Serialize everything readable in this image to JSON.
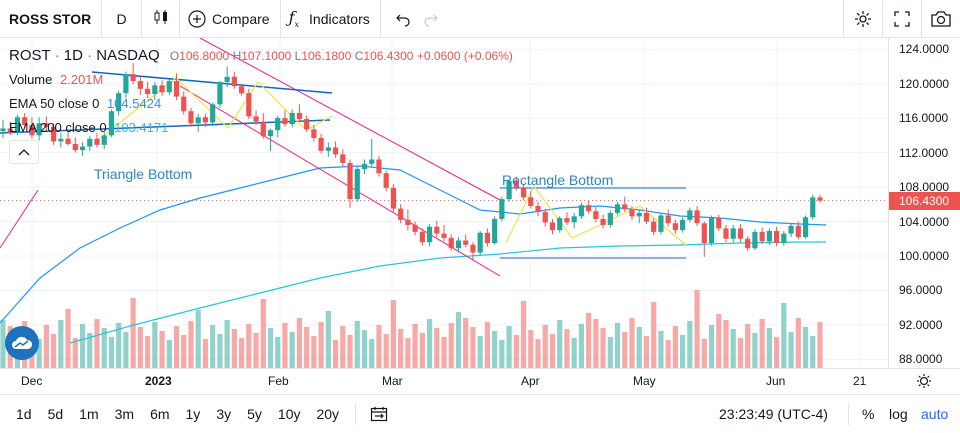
{
  "toolbar": {
    "symbol": "ROSS STOR",
    "interval": "D",
    "compare_label": "Compare",
    "indicators_label": "Indicators"
  },
  "legend": {
    "symbol": "ROST",
    "interval": "1D",
    "exchange": "NASDAQ",
    "o_label": "O",
    "open": "106.8000",
    "h_label": "H",
    "high": "107.1000",
    "l_label": "L",
    "low": "106.1800",
    "c_label": "C",
    "close": "106.4300",
    "change": "+0.0600 (+0.06%)",
    "volume_label": "Volume",
    "volume_value": "2.201M",
    "ema50_label": "EMA 50 close 0",
    "ema50_value": "104.5424",
    "ema200_label": "EMA 200 close 0",
    "ema200_value": "103.4171"
  },
  "annotations": {
    "triangle": "Triangle Bottom",
    "rectangle": "Rectangle Bottom"
  },
  "price_axis": {
    "labels": [
      "124.0000",
      "120.0000",
      "116.0000",
      "112.0000",
      "108.0000",
      "104.0000",
      "100.0000",
      "96.0000",
      "92.0000",
      "88.0000"
    ],
    "current_price": "106.4300"
  },
  "time_axis": {
    "labels": [
      "Dec",
      "2023",
      "Feb",
      "Mar",
      "Apr",
      "May",
      "Jun",
      "21"
    ]
  },
  "bottom": {
    "ranges": [
      "1d",
      "5d",
      "1m",
      "3m",
      "6m",
      "1y",
      "3y",
      "5y",
      "10y",
      "20y"
    ],
    "time": "23:23:49 (UTC-4)",
    "percent": "%",
    "log": "log",
    "auto": "auto"
  },
  "colors": {
    "up": "#26a69a",
    "down": "#ef5350",
    "ema50": "#2196f3",
    "ema200": "#26c6da",
    "pattern": "#e91e8c",
    "trendline": "#1565c0",
    "zigzag": "#f0e442",
    "accent": "#2962ff"
  },
  "chart_data": {
    "type": "candlestick",
    "y_range": [
      87,
      125.3
    ],
    "candles": [
      [
        114.5,
        115.8,
        113.7,
        114.8
      ],
      [
        114.8,
        115.6,
        114.0,
        114.3
      ],
      [
        114.3,
        116.4,
        114.0,
        116.1
      ],
      [
        116.1,
        116.6,
        114.9,
        115.2
      ],
      [
        115.2,
        116.1,
        113.6,
        114.0
      ],
      [
        114.0,
        116.1,
        113.4,
        115.4
      ],
      [
        115.4,
        116.2,
        114.5,
        115.0
      ],
      [
        115.0,
        115.4,
        112.9,
        113.3
      ],
      [
        113.3,
        114.3,
        112.6,
        113.6
      ],
      [
        113.6,
        114.6,
        112.8,
        113.0
      ],
      [
        113.0,
        113.8,
        112.0,
        112.3
      ],
      [
        112.3,
        113.2,
        111.6,
        112.7
      ],
      [
        112.7,
        113.9,
        112.2,
        113.6
      ],
      [
        113.6,
        114.3,
        112.6,
        112.9
      ],
      [
        112.9,
        114.4,
        112.4,
        114.0
      ],
      [
        114.0,
        117.0,
        113.8,
        116.8
      ],
      [
        116.8,
        119.2,
        116.3,
        118.9
      ],
      [
        118.9,
        121.4,
        118.3,
        121.1
      ],
      [
        121.1,
        122.4,
        119.9,
        120.3
      ],
      [
        120.3,
        120.9,
        118.7,
        119.4
      ],
      [
        119.4,
        120.2,
        118.3,
        118.8
      ],
      [
        118.8,
        120.2,
        118.1,
        119.8
      ],
      [
        119.8,
        120.4,
        118.6,
        119.0
      ],
      [
        119.0,
        120.5,
        118.7,
        120.3
      ],
      [
        120.3,
        121.2,
        118.1,
        118.5
      ],
      [
        118.5,
        119.1,
        116.4,
        116.8
      ],
      [
        116.8,
        117.2,
        115.0,
        115.4
      ],
      [
        115.4,
        116.5,
        114.4,
        116.1
      ],
      [
        116.1,
        116.5,
        115.0,
        115.5
      ],
      [
        115.5,
        117.8,
        115.1,
        117.6
      ],
      [
        117.6,
        120.3,
        117.2,
        120.2
      ],
      [
        120.2,
        122.0,
        119.6,
        120.8
      ],
      [
        120.8,
        121.4,
        119.4,
        119.7
      ],
      [
        119.7,
        120.0,
        118.6,
        118.9
      ],
      [
        118.9,
        119.4,
        115.9,
        116.2
      ],
      [
        116.2,
        116.9,
        115.2,
        115.6
      ],
      [
        115.6,
        116.6,
        113.6,
        113.9
      ],
      [
        113.9,
        114.8,
        112.2,
        114.6
      ],
      [
        114.6,
        116.3,
        113.8,
        116.0
      ],
      [
        116.0,
        116.9,
        115.0,
        115.3
      ],
      [
        115.3,
        117.0,
        114.9,
        116.6
      ],
      [
        116.6,
        117.6,
        115.6,
        115.9
      ],
      [
        115.9,
        116.3,
        114.4,
        114.7
      ],
      [
        114.7,
        115.2,
        113.3,
        113.7
      ],
      [
        113.7,
        114.2,
        111.9,
        112.2
      ],
      [
        112.2,
        113.2,
        111.5,
        112.6
      ],
      [
        112.6,
        113.3,
        111.4,
        111.8
      ],
      [
        111.8,
        112.4,
        110.4,
        110.8
      ],
      [
        110.8,
        111.2,
        105.6,
        106.6
      ],
      [
        106.6,
        110.4,
        106.3,
        110.1
      ],
      [
        110.1,
        111.2,
        109.5,
        110.7
      ],
      [
        110.7,
        113.6,
        110.3,
        111.2
      ],
      [
        111.2,
        111.6,
        109.2,
        109.6
      ],
      [
        109.6,
        109.9,
        107.5,
        107.9
      ],
      [
        107.9,
        108.3,
        105.1,
        105.5
      ],
      [
        105.5,
        106.0,
        103.8,
        104.2
      ],
      [
        104.2,
        105.4,
        103.0,
        103.6
      ],
      [
        103.6,
        104.0,
        102.4,
        102.8
      ],
      [
        102.8,
        103.2,
        101.2,
        101.6
      ],
      [
        101.6,
        103.7,
        101.1,
        103.4
      ],
      [
        103.4,
        104.1,
        102.2,
        102.6
      ],
      [
        102.6,
        103.6,
        101.7,
        102.1
      ],
      [
        102.1,
        102.5,
        100.6,
        100.9
      ],
      [
        100.9,
        102.2,
        100.4,
        101.8
      ],
      [
        101.8,
        102.5,
        101.0,
        101.3
      ],
      [
        101.3,
        101.6,
        99.6,
        100.4
      ],
      [
        100.4,
        102.9,
        100.1,
        102.7
      ],
      [
        102.7,
        103.2,
        101.1,
        101.5
      ],
      [
        101.5,
        104.6,
        101.3,
        104.3
      ],
      [
        104.3,
        106.9,
        104.0,
        106.6
      ],
      [
        106.6,
        108.9,
        106.3,
        108.7
      ],
      [
        108.7,
        109.2,
        107.6,
        107.9
      ],
      [
        107.9,
        108.3,
        106.5,
        106.8
      ],
      [
        106.8,
        107.5,
        105.5,
        105.8
      ],
      [
        105.8,
        106.3,
        104.6,
        105.1
      ],
      [
        105.1,
        105.5,
        103.4,
        103.9
      ],
      [
        103.9,
        104.3,
        102.5,
        103.0
      ],
      [
        103.0,
        104.6,
        102.7,
        104.4
      ],
      [
        104.4,
        105.1,
        103.6,
        103.9
      ],
      [
        103.9,
        105.0,
        103.2,
        104.6
      ],
      [
        104.6,
        106.2,
        104.3,
        105.9
      ],
      [
        105.9,
        106.4,
        104.9,
        105.2
      ],
      [
        105.2,
        105.7,
        103.9,
        104.3
      ],
      [
        104.3,
        104.8,
        103.2,
        103.6
      ],
      [
        103.6,
        105.3,
        103.3,
        105.0
      ],
      [
        105.0,
        106.3,
        104.7,
        106.0
      ],
      [
        106.0,
        106.9,
        105.1,
        105.4
      ],
      [
        105.4,
        105.8,
        104.2,
        104.6
      ],
      [
        104.6,
        105.3,
        103.8,
        105.0
      ],
      [
        105.0,
        105.6,
        103.7,
        104.0
      ],
      [
        104.0,
        104.4,
        102.4,
        102.8
      ],
      [
        102.8,
        105.0,
        102.5,
        104.7
      ],
      [
        104.7,
        105.4,
        103.4,
        103.8
      ],
      [
        103.8,
        104.2,
        102.6,
        103.0
      ],
      [
        103.0,
        104.5,
        102.7,
        104.2
      ],
      [
        104.2,
        105.6,
        103.9,
        105.3
      ],
      [
        105.3,
        105.8,
        103.5,
        103.8
      ],
      [
        103.8,
        104.0,
        99.9,
        101.5
      ],
      [
        101.5,
        104.7,
        101.2,
        104.4
      ],
      [
        104.4,
        104.8,
        102.9,
        103.2
      ],
      [
        103.2,
        103.6,
        101.6,
        102.0
      ],
      [
        102.0,
        103.6,
        101.6,
        103.2
      ],
      [
        103.2,
        103.7,
        101.6,
        102.0
      ],
      [
        102.0,
        102.3,
        100.6,
        100.9
      ],
      [
        100.9,
        103.1,
        100.7,
        102.8
      ],
      [
        102.8,
        103.3,
        101.4,
        101.7
      ],
      [
        101.7,
        103.2,
        101.3,
        102.9
      ],
      [
        102.9,
        103.4,
        101.1,
        101.5
      ],
      [
        101.5,
        102.9,
        101.2,
        102.6
      ],
      [
        102.6,
        103.8,
        102.2,
        103.5
      ],
      [
        103.5,
        104.0,
        101.9,
        102.2
      ],
      [
        102.2,
        104.7,
        102.0,
        104.5
      ],
      [
        104.5,
        107.1,
        104.2,
        106.8
      ],
      [
        106.8,
        107.1,
        106.18,
        106.43
      ]
    ]
  }
}
